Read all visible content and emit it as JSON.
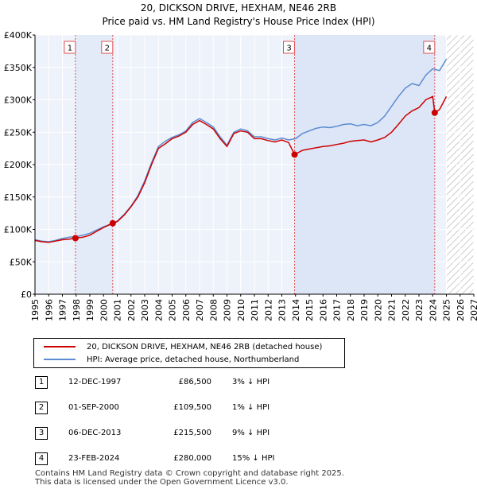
{
  "chart_data": {
    "type": "line",
    "title": "20, DICKSON DRIVE, HEXHAM, NE46 2RB",
    "subtitle": "Price paid vs. HM Land Registry's House Price Index (HPI)",
    "xlabel": "",
    "ylabel": "",
    "xlim": [
      1995,
      2027
    ],
    "ylim": [
      0,
      400000
    ],
    "grid": true,
    "x_ticks": [
      "1995",
      "1996",
      "1997",
      "1998",
      "1999",
      "2000",
      "2001",
      "2002",
      "2003",
      "2004",
      "2005",
      "2006",
      "2007",
      "2008",
      "2009",
      "2010",
      "2011",
      "2012",
      "2013",
      "2014",
      "2015",
      "2016",
      "2017",
      "2018",
      "2019",
      "2020",
      "2021",
      "2022",
      "2023",
      "2024",
      "2025",
      "2026",
      "2027"
    ],
    "y_ticks": [
      {
        "value": 0,
        "label": "£0"
      },
      {
        "value": 50000,
        "label": "£50K"
      },
      {
        "value": 100000,
        "label": "£100K"
      },
      {
        "value": 150000,
        "label": "£150K"
      },
      {
        "value": 200000,
        "label": "£200K"
      },
      {
        "value": 250000,
        "label": "£250K"
      },
      {
        "value": 300000,
        "label": "£300K"
      },
      {
        "value": 350000,
        "label": "£350K"
      },
      {
        "value": 400000,
        "label": "£400K"
      }
    ],
    "series": [
      {
        "name": "20, DICKSON DRIVE, HEXHAM, NE46 2RB (detached house)",
        "color": "#cc0000",
        "x": [
          1995.0,
          1995.5,
          1996.0,
          1996.5,
          1997.0,
          1997.5,
          1997.95,
          1998.5,
          1999.0,
          1999.5,
          2000.0,
          2000.67,
          2001.0,
          2001.5,
          2002.0,
          2002.5,
          2003.0,
          2003.5,
          2004.0,
          2004.5,
          2005.0,
          2005.5,
          2006.0,
          2006.5,
          2007.0,
          2007.5,
          2008.0,
          2008.5,
          2009.0,
          2009.5,
          2010.0,
          2010.5,
          2011.0,
          2011.5,
          2012.0,
          2012.5,
          2013.0,
          2013.5,
          2013.93,
          2014.5,
          2015.0,
          2015.5,
          2016.0,
          2016.5,
          2017.0,
          2017.5,
          2018.0,
          2018.5,
          2019.0,
          2019.5,
          2020.0,
          2020.5,
          2021.0,
          2021.5,
          2022.0,
          2022.5,
          2023.0,
          2023.5,
          2024.0,
          2024.15,
          2024.5,
          2025.0
        ],
        "values": [
          83000,
          81000,
          80000,
          82000,
          84000,
          85000,
          86500,
          88000,
          91000,
          97000,
          103000,
          109500,
          112000,
          122000,
          135000,
          150000,
          172000,
          200000,
          225000,
          232000,
          240000,
          244000,
          250000,
          262000,
          268000,
          262000,
          255000,
          240000,
          228000,
          248000,
          252000,
          250000,
          240000,
          240000,
          237000,
          235000,
          238000,
          234000,
          215500,
          222000,
          224000,
          226000,
          228000,
          229000,
          231000,
          233000,
          236000,
          237000,
          238000,
          235000,
          238000,
          242000,
          250000,
          262000,
          275000,
          283000,
          288000,
          300000,
          305000,
          280000,
          285000,
          305000
        ]
      },
      {
        "name": "HPI: Average price, detached house, Northumberland",
        "color": "#5b8bd0",
        "x": [
          1995.0,
          1995.5,
          1996.0,
          1996.5,
          1997.0,
          1997.5,
          1998.0,
          1998.5,
          1999.0,
          1999.5,
          2000.0,
          2000.5,
          2001.0,
          2001.5,
          2002.0,
          2002.5,
          2003.0,
          2003.5,
          2004.0,
          2004.5,
          2005.0,
          2005.5,
          2006.0,
          2006.5,
          2007.0,
          2007.5,
          2008.0,
          2008.5,
          2009.0,
          2009.5,
          2010.0,
          2010.5,
          2011.0,
          2011.5,
          2012.0,
          2012.5,
          2013.0,
          2013.5,
          2014.0,
          2014.5,
          2015.0,
          2015.5,
          2016.0,
          2016.5,
          2017.0,
          2017.5,
          2018.0,
          2018.5,
          2019.0,
          2019.5,
          2020.0,
          2020.5,
          2021.0,
          2021.5,
          2022.0,
          2022.5,
          2023.0,
          2023.5,
          2024.0,
          2024.5,
          2025.0
        ],
        "values": [
          84000,
          82000,
          81000,
          83000,
          86000,
          88000,
          89000,
          91000,
          94000,
          99000,
          104000,
          108000,
          113000,
          123000,
          136000,
          152000,
          175000,
          203000,
          228000,
          236000,
          242000,
          246000,
          252000,
          265000,
          271000,
          265000,
          258000,
          243000,
          230000,
          250000,
          255000,
          252000,
          243000,
          243000,
          240000,
          238000,
          241000,
          238000,
          240000,
          248000,
          252000,
          256000,
          258000,
          257000,
          259000,
          262000,
          263000,
          260000,
          262000,
          260000,
          265000,
          275000,
          290000,
          305000,
          318000,
          325000,
          322000,
          338000,
          348000,
          345000,
          363000
        ]
      }
    ],
    "forecast_start": 2024.95,
    "sales": [
      {
        "num": "1",
        "x": 1997.95,
        "value": 86500
      },
      {
        "num": "2",
        "x": 2000.67,
        "value": 109500
      },
      {
        "num": "3",
        "x": 2013.93,
        "value": 215500
      },
      {
        "num": "4",
        "x": 2024.15,
        "value": 280000
      }
    ]
  },
  "legend": {
    "items": [
      {
        "label": "20, DICKSON DRIVE, HEXHAM, NE46 2RB (detached house)",
        "color": "#cc0000"
      },
      {
        "label": "HPI: Average price, detached house, Northumberland",
        "color": "#5b8bd0"
      }
    ]
  },
  "transactions": [
    {
      "num": "1",
      "date": "12-DEC-1997",
      "price": "£86,500",
      "diff": "3% ↓ HPI"
    },
    {
      "num": "2",
      "date": "01-SEP-2000",
      "price": "£109,500",
      "diff": "1% ↓ HPI"
    },
    {
      "num": "3",
      "date": "06-DEC-2013",
      "price": "£215,500",
      "diff": "9% ↓ HPI"
    },
    {
      "num": "4",
      "date": "23-FEB-2024",
      "price": "£280,000",
      "diff": "15% ↓ HPI"
    }
  ],
  "footer": {
    "line1": "Contains HM Land Registry data © Crown copyright and database right 2025.",
    "line2": "This data is licensed under the Open Government Licence v3.0."
  }
}
